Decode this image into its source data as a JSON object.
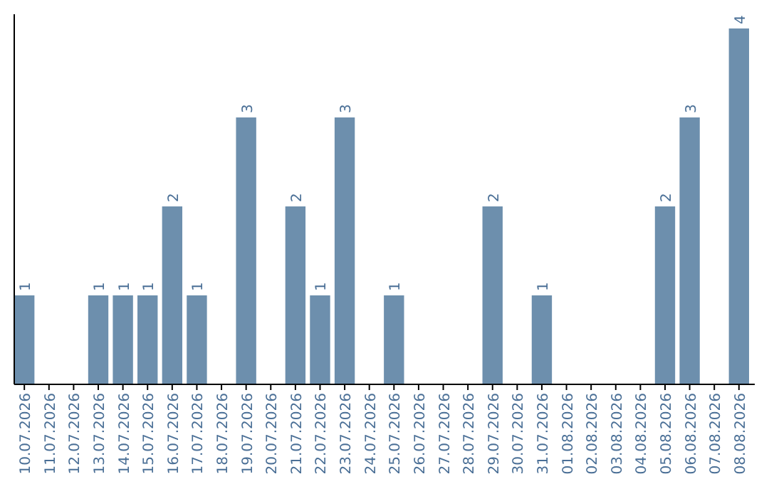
{
  "chart_data": {
    "type": "bar",
    "categories": [
      "10.07.2026",
      "11.07.2026",
      "12.07.2026",
      "13.07.2026",
      "14.07.2026",
      "15.07.2026",
      "16.07.2026",
      "17.07.2026",
      "18.07.2026",
      "19.07.2026",
      "20.07.2026",
      "21.07.2026",
      "22.07.2026",
      "23.07.2026",
      "24.07.2026",
      "25.07.2026",
      "26.07.2026",
      "27.07.2026",
      "28.07.2026",
      "29.07.2026",
      "30.07.2026",
      "31.07.2026",
      "01.08.2026",
      "02.08.2026",
      "03.08.2026",
      "04.08.2026",
      "05.08.2026",
      "06.08.2026",
      "07.08.2026",
      "08.08.2026"
    ],
    "values": [
      1,
      0,
      0,
      1,
      1,
      1,
      2,
      1,
      0,
      3,
      0,
      2,
      1,
      3,
      0,
      1,
      0,
      0,
      0,
      2,
      0,
      1,
      0,
      0,
      0,
      0,
      2,
      3,
      0,
      4
    ],
    "value_labels": [
      "1",
      null,
      null,
      "1",
      "1",
      "1",
      "2",
      "1",
      null,
      "3",
      null,
      "2",
      "1",
      "3",
      null,
      "1",
      null,
      null,
      null,
      "2",
      null,
      "1",
      null,
      null,
      null,
      null,
      "2",
      "3",
      null,
      "4"
    ],
    "color": "#6d8fad"
  }
}
